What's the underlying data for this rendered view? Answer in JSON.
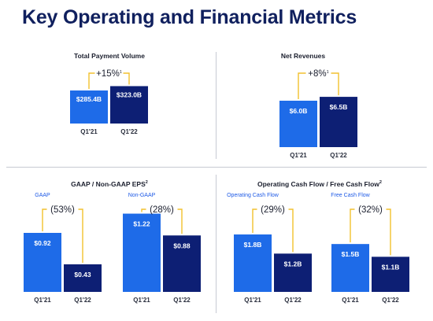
{
  "slide": {
    "title": "Key Operating and Financial Metrics"
  },
  "colors": {
    "title": "#10205e",
    "bar_prev": "#1e6be8",
    "bar_curr": "#0d1f74",
    "bracket": "#f2c12e",
    "divider": "#c7cad3"
  },
  "chart_data": [
    {
      "type": "bar",
      "title": "Total Payment Volume",
      "categories": [
        "Q1'21",
        "Q1'22"
      ],
      "values": [
        285.4,
        323.0
      ],
      "value_labels": [
        "$285.4B",
        "$323.0B"
      ],
      "change_label": "+15%",
      "change_footnote": "1"
    },
    {
      "type": "bar",
      "title": "Net Revenues",
      "categories": [
        "Q1'21",
        "Q1'22"
      ],
      "values": [
        6.0,
        6.5
      ],
      "value_labels": [
        "$6.0B",
        "$6.5B"
      ],
      "change_label": "+8%",
      "change_footnote": "1"
    },
    {
      "type": "bar",
      "title": "GAAP / Non-GAAP EPS",
      "title_footnote": "2",
      "groups": [
        {
          "name": "GAAP",
          "categories": [
            "Q1'21",
            "Q1'22"
          ],
          "values": [
            0.92,
            0.43
          ],
          "value_labels": [
            "$0.92",
            "$0.43"
          ],
          "change_label": "(53%)"
        },
        {
          "name": "Non-GAAP",
          "categories": [
            "Q1'21",
            "Q1'22"
          ],
          "values": [
            1.22,
            0.88
          ],
          "value_labels": [
            "$1.22",
            "$0.88"
          ],
          "change_label": "(28%)"
        }
      ]
    },
    {
      "type": "bar",
      "title": "Operating Cash Flow / Free Cash Flow",
      "title_footnote": "2",
      "groups": [
        {
          "name": "Operating Cash Flow",
          "categories": [
            "Q1'21",
            "Q1'22"
          ],
          "values": [
            1.8,
            1.2
          ],
          "value_labels": [
            "$1.8B",
            "$1.2B"
          ],
          "change_label": "(29%)"
        },
        {
          "name": "Free Cash Flow",
          "categories": [
            "Q1'21",
            "Q1'22"
          ],
          "values": [
            1.5,
            1.1
          ],
          "value_labels": [
            "$1.5B",
            "$1.1B"
          ],
          "change_label": "(32%)"
        }
      ]
    }
  ]
}
